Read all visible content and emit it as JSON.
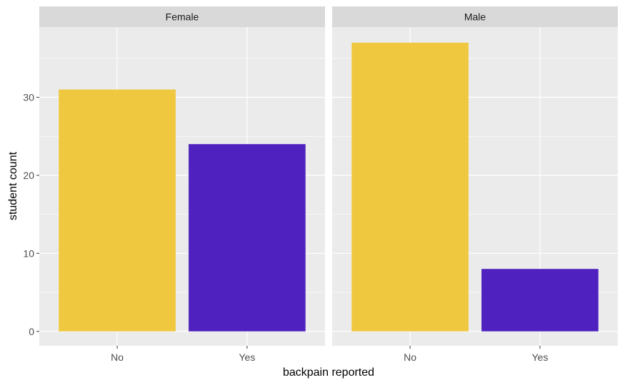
{
  "chart_data": {
    "type": "bar",
    "facet_by": "sex",
    "categories": [
      "No",
      "Yes"
    ],
    "panels": [
      {
        "name": "Female",
        "values": [
          31,
          24
        ]
      },
      {
        "name": "Male",
        "values": [
          37,
          8
        ]
      }
    ],
    "xlabel": "backpain reported",
    "ylabel": "student count",
    "ylim": [
      -1.85,
      39
    ],
    "yticks": [
      0,
      10,
      20,
      30
    ],
    "ytick_labels": [
      "0",
      "10",
      "20",
      "30"
    ],
    "grid": true,
    "legend": "none",
    "colors": {
      "No": "#EFC840",
      "Yes": "#4F21BF"
    },
    "panel_background": "#EBEBEB",
    "strip_background": "#D9D9D9",
    "grid_color": "#FFFFFF"
  }
}
